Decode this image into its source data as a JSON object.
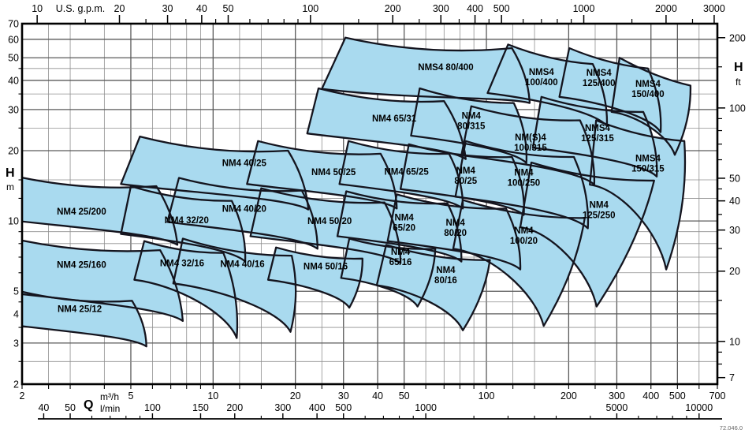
{
  "chart_data": {
    "type": "area",
    "title": "Pump selection chart — performance ranges",
    "xlabel": "Q",
    "ylabel": "H",
    "xlim": [
      2,
      700
    ],
    "ylim": [
      2,
      70
    ],
    "scale": "log-log",
    "grid": true,
    "colors": {
      "fill": "#A9DAEF",
      "stroke": "#14141E",
      "grid": "#8F8F8F",
      "grid_major": "#5A5A5A",
      "frame": "#000000"
    },
    "x_axis": {
      "unit": "m³/h",
      "min": 2,
      "max": 700,
      "labeled": [
        2,
        5,
        10,
        20,
        30,
        40,
        50,
        100,
        200,
        300,
        400,
        500,
        700
      ],
      "grid": [
        2,
        2.5,
        3,
        4,
        5,
        6,
        7,
        8,
        9,
        10,
        12.5,
        15,
        20,
        25,
        30,
        40,
        50,
        60,
        70,
        80,
        90,
        100,
        125,
        150,
        200,
        250,
        300,
        400,
        500,
        600,
        700
      ]
    },
    "x_axis_lmin": {
      "unit": "l/min",
      "labeled": [
        40,
        50,
        100,
        150,
        200,
        300,
        400,
        500,
        1000,
        5000,
        10000
      ],
      "minor": [
        60,
        70,
        80,
        90,
        250,
        600,
        700,
        800,
        900,
        1500,
        2000,
        2500,
        3000,
        4000,
        6000,
        7000,
        8000,
        9000
      ]
    },
    "top_axis": {
      "unit": "U.S. g.p.m.",
      "labeled": [
        10,
        20,
        30,
        40,
        50,
        100,
        200,
        300,
        400,
        500,
        1000,
        2000,
        3000
      ],
      "minor": [
        15,
        25,
        35,
        45,
        60,
        70,
        80,
        90,
        150,
        250,
        350,
        450,
        600,
        700,
        800,
        900,
        1500,
        2500
      ]
    },
    "y_axis": {
      "unit": "m",
      "min": 2,
      "max": 70,
      "labeled": [
        2,
        3,
        4,
        5,
        10,
        20,
        30,
        40,
        50,
        60,
        70
      ],
      "grid": [
        2,
        2.5,
        3,
        3.5,
        4,
        4.5,
        5,
        6,
        7,
        8,
        9,
        10,
        12.5,
        15,
        20,
        25,
        30,
        35,
        40,
        45,
        50,
        60,
        70
      ]
    },
    "y_axis_ft": {
      "unit": "ft",
      "labeled": [
        7,
        10,
        20,
        30,
        40,
        50,
        100,
        200
      ],
      "minor": [
        8,
        9,
        15,
        25,
        35,
        45,
        60,
        70,
        80,
        90,
        150
      ]
    },
    "labels": {
      "head_left": "H",
      "unit_left": "m",
      "head_right": "H",
      "unit_right": "ft",
      "flow": "Q",
      "flow_unit1": "m³/h",
      "flow_unit2": "l/min",
      "code": "72.046.0"
    },
    "regions": [
      {
        "label": "NM4 25/200",
        "two_line": false,
        "label_at": [
          3.3,
          11
        ],
        "corners": [
          [
            1.7,
            16
          ],
          [
            6.2,
            14.1
          ],
          [
            7.4,
            7.9
          ],
          [
            1.55,
            10.3
          ]
        ]
      },
      {
        "label": "NM4 25/160",
        "two_line": false,
        "label_at": [
          3.3,
          6.5
        ],
        "corners": [
          [
            1.57,
            8.8
          ],
          [
            6.4,
            7.5
          ],
          [
            7.75,
            3.73
          ],
          [
            1.4,
            5.1
          ]
        ]
      },
      {
        "label": "NM4 25/12",
        "two_line": false,
        "label_at": [
          3.25,
          4.2
        ],
        "corners": [
          [
            1.9,
            5.05
          ],
          [
            5.05,
            4.55
          ],
          [
            5.7,
            2.9
          ],
          [
            1.78,
            3.6
          ]
        ]
      },
      {
        "label": "NM4 32/20",
        "two_line": false,
        "label_at": [
          8,
          10.1
        ],
        "corners": [
          [
            5,
            14.1
          ],
          [
            11.7,
            12.2
          ],
          [
            13.1,
            6.7
          ],
          [
            4.6,
            8.8
          ]
        ]
      },
      {
        "label": "NM4 32/16",
        "two_line": false,
        "label_at": [
          7.7,
          6.6
        ],
        "corners": [
          [
            5.6,
            8.2
          ],
          [
            10.9,
            7.3
          ],
          [
            12.2,
            3.15
          ],
          [
            5.15,
            5.6
          ]
        ]
      },
      {
        "label": "NM4 40/25",
        "two_line": false,
        "label_at": [
          13,
          17.7
        ],
        "corners": [
          [
            5.4,
            23
          ],
          [
            18.8,
            20
          ],
          [
            22.3,
            11.2
          ],
          [
            4.6,
            14.4
          ]
        ]
      },
      {
        "label": "NM4 40/20",
        "two_line": false,
        "label_at": [
          13,
          11.3
        ],
        "corners": [
          [
            7.5,
            15.3
          ],
          [
            21.1,
            13.5
          ],
          [
            24.1,
            7.6
          ],
          [
            6.8,
            9.9
          ]
        ]
      },
      {
        "label": "NM4 40/16",
        "two_line": false,
        "label_at": [
          12.8,
          6.55
        ],
        "corners": [
          [
            7.75,
            8.4
          ],
          [
            19.4,
            7.1
          ],
          [
            19.2,
            3.35
          ],
          [
            7.15,
            5.4
          ]
        ]
      },
      {
        "label": "NM4 50/25",
        "two_line": false,
        "label_at": [
          27.6,
          16.2
        ],
        "corners": [
          [
            14.6,
            22
          ],
          [
            41,
            19.4
          ],
          [
            47,
            11.3
          ],
          [
            13.3,
            14.4
          ]
        ]
      },
      {
        "label": "NM4 50/20",
        "two_line": false,
        "label_at": [
          26.7,
          10
        ],
        "corners": [
          [
            15,
            13.8
          ],
          [
            42.4,
            12
          ],
          [
            48.5,
            6.6
          ],
          [
            13.7,
            8.6
          ]
        ]
      },
      {
        "label": "NM4 50/16",
        "two_line": false,
        "label_at": [
          25.8,
          6.4
        ],
        "corners": [
          [
            17,
            7.7
          ],
          [
            35.2,
            6.9
          ],
          [
            31.5,
            4.25
          ],
          [
            15.9,
            5.6
          ]
        ]
      },
      {
        "label": "NM4 65/31",
        "two_line": false,
        "label_at": [
          46,
          27.5
        ],
        "corners": [
          [
            24.3,
            37
          ],
          [
            70,
            32.6
          ],
          [
            84,
            18.4
          ],
          [
            22.1,
            23.7
          ]
        ]
      },
      {
        "label": "NM4 65/25",
        "two_line": false,
        "label_at": [
          51,
          16.3
        ],
        "corners": [
          [
            31.3,
            22
          ],
          [
            73,
            19.4
          ],
          [
            82,
            11.3
          ],
          [
            29,
            14.4
          ]
        ]
      },
      {
        "label": "NM4 65/20",
        "two_line": true,
        "label_at": [
          50,
          9.9
        ],
        "corners": [
          [
            30.7,
            13.4
          ],
          [
            72,
            11.9
          ],
          [
            81,
            6.7
          ],
          [
            28.5,
            8.6
          ]
        ]
      },
      {
        "label": "NM4 65/16",
        "two_line": true,
        "label_at": [
          48.5,
          7.05
        ],
        "corners": [
          [
            31.5,
            8.4
          ],
          [
            65,
            7.6
          ],
          [
            56,
            4.3
          ],
          [
            29.4,
            5.7
          ]
        ]
      },
      {
        "label": "NMS4 80/400",
        "two_line": false,
        "label_at": [
          71,
          45.6
        ],
        "corners": [
          [
            30.5,
            61
          ],
          [
            124,
            55
          ],
          [
            144,
            32
          ],
          [
            25,
            36.8
          ]
        ]
      },
      {
        "label": "NM4 80/315",
        "two_line": true,
        "label_at": [
          88,
          27
        ],
        "corners": [
          [
            57,
            37
          ],
          [
            126,
            32
          ],
          [
            140,
            17.7
          ],
          [
            53,
            23.2
          ]
        ]
      },
      {
        "label": "NM4 80/25",
        "two_line": true,
        "label_at": [
          84,
          15.7
        ],
        "corners": [
          [
            52,
            21.3
          ],
          [
            124,
            18.8
          ],
          [
            137,
            10.6
          ],
          [
            48.5,
            13.7
          ]
        ]
      },
      {
        "label": "NM4 80/20",
        "two_line": true,
        "label_at": [
          77,
          9.4
        ],
        "corners": [
          [
            47,
            13
          ],
          [
            118,
            11.3
          ],
          [
            133,
            6.2
          ],
          [
            43.5,
            8.2
          ]
        ]
      },
      {
        "label": "NM4 80/16",
        "two_line": true,
        "label_at": [
          71,
          5.9
        ],
        "corners": [
          [
            43,
            7.9
          ],
          [
            103,
            6.8
          ],
          [
            82,
            3.4
          ],
          [
            39.7,
            5.3
          ]
        ]
      },
      {
        "label": "NMS4 100/400",
        "two_line": true,
        "label_at": [
          159,
          41.5
        ],
        "corners": [
          [
            120,
            57
          ],
          [
            245,
            47
          ],
          [
            276,
            25.5
          ],
          [
            101,
            35.3
          ]
        ]
      },
      {
        "label": "NM(S)4 100/315",
        "two_line": true,
        "label_at": [
          145,
          21.8
        ],
        "corners": [
          [
            88,
            31
          ],
          [
            220,
            27
          ],
          [
            248,
            14.3
          ],
          [
            81,
            19.1
          ]
        ]
      },
      {
        "label": "NM4 100/250",
        "two_line": true,
        "label_at": [
          137,
          15.4
        ],
        "corners": [
          [
            84,
            22
          ],
          [
            209,
            18.8
          ],
          [
            235,
            9.3
          ],
          [
            77,
            12.7
          ]
        ]
      },
      {
        "label": "NM4 100/20",
        "two_line": true,
        "label_at": [
          137,
          8.7
        ],
        "corners": [
          [
            82,
            12.3
          ],
          [
            229,
            10.3
          ],
          [
            162,
            3.55
          ],
          [
            75.6,
            7.6
          ]
        ]
      },
      {
        "label": "NMS4 125/400",
        "two_line": true,
        "label_at": [
          258,
          41.2
        ],
        "corners": [
          [
            201,
            55
          ],
          [
            390,
            45
          ],
          [
            434,
            24
          ],
          [
            185,
            34
          ]
        ]
      },
      {
        "label": "NMS4 125/315",
        "two_line": true,
        "label_at": [
          255,
          23.9
        ],
        "corners": [
          [
            159,
            34
          ],
          [
            375,
            29.3
          ],
          [
            420,
            15.5
          ],
          [
            148,
            20.6
          ]
        ]
      },
      {
        "label": "NM4 125/250",
        "two_line": true,
        "label_at": [
          258,
          11.2
        ],
        "corners": [
          [
            146,
            17.8
          ],
          [
            411,
            14.9
          ],
          [
            253,
            4.3
          ],
          [
            133,
            9.4
          ]
        ]
      },
      {
        "label": "NMS4 150/400",
        "two_line": true,
        "label_at": [
          390,
          37
        ],
        "corners": [
          [
            307,
            50
          ],
          [
            558,
            38
          ],
          [
            489,
            19.2
          ],
          [
            287,
            29.3
          ]
        ]
      },
      {
        "label": "NMS4 150/315",
        "two_line": true,
        "label_at": [
          390,
          17.7
        ],
        "corners": [
          [
            252,
            27
          ],
          [
            530,
            22
          ],
          [
            455,
            6.2
          ],
          [
            239,
            14.3
          ]
        ]
      }
    ]
  }
}
